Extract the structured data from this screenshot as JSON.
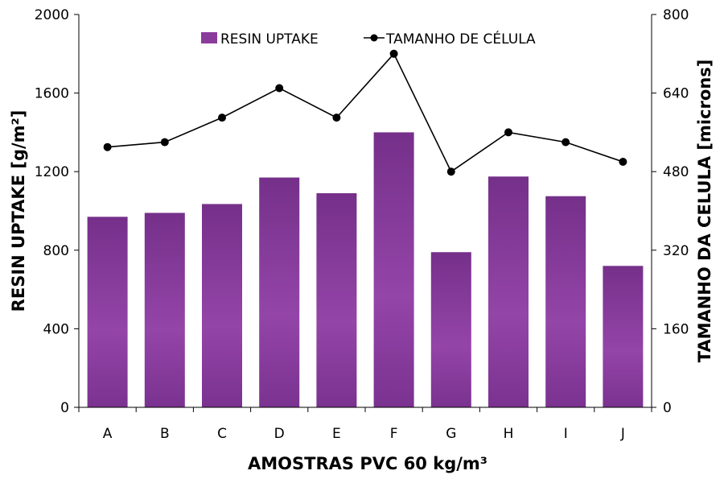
{
  "chart_data": {
    "type": "bar",
    "categories": [
      "A",
      "B",
      "C",
      "D",
      "E",
      "F",
      "G",
      "H",
      "I",
      "J"
    ],
    "series": [
      {
        "name": "RESIN UPTAKE",
        "type": "bar",
        "axis": "left",
        "values": [
          970,
          990,
          1035,
          1170,
          1090,
          1400,
          790,
          1175,
          1075,
          720
        ]
      },
      {
        "name": "TAMANHO DE CÉLULA",
        "type": "line",
        "axis": "right",
        "values": [
          530,
          540,
          590,
          650,
          590,
          720,
          480,
          560,
          540,
          500
        ]
      }
    ],
    "xlabel": "AMOSTRAS PVC 60 kg/m³",
    "ylabel": "RESIN UPTAKE [g/m²]",
    "y2label": "TAMANHO DA CELULA [microns]",
    "ylim": [
      0,
      2000
    ],
    "y2lim": [
      0,
      800
    ],
    "yticks": [
      "0",
      "400",
      "800",
      "1200",
      "1600",
      "2000"
    ],
    "y2ticks": [
      "0",
      "160",
      "320",
      "480",
      "640",
      "800"
    ],
    "grid": false,
    "legend_position": "top-center",
    "colors": {
      "bar": "#8a3c9b",
      "bar_light": "#9a4aac",
      "bar_dark": "#6e2a80",
      "line": "#000000"
    }
  }
}
